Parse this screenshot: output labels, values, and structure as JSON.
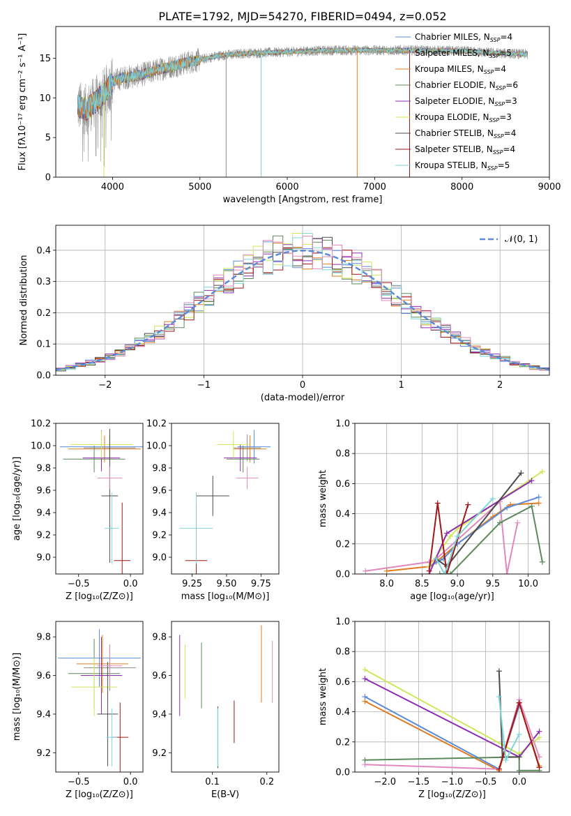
{
  "title": "PLATE=1792, MJD=54270, FIBERID=0494, z=0.052",
  "colors": {
    "chabrier_miles": "#5b8bd9",
    "salpeter_miles": "#8e8e8e",
    "kroupa_miles": "#e07b22",
    "chabrier_elodie": "#5a8a5a",
    "salpeter_elodie": "#8e2bb3",
    "kroupa_elodie": "#cde85a",
    "chabrier_stelib": "#4a4a4a",
    "salpeter_stelib": "#a01717",
    "kroupa_stelib": "#7fd6d9",
    "pink": "#e088bd",
    "gauss": "#5b8bd9"
  },
  "chart_data": [
    {
      "id": "spectrum",
      "type": "line",
      "xlabel": "wavelength [Angstrom, rest frame]",
      "ylabel": "Flux [fλ10⁻¹⁷ erg cm⁻² s⁻¹ A⁻¹]",
      "xlim": [
        3350,
        9000
      ],
      "ylim": [
        0,
        19
      ],
      "xticks": [
        "4000",
        "5000",
        "6000",
        "7000",
        "8000",
        "9000"
      ],
      "yticks": [
        "0",
        "5",
        "10",
        "15"
      ],
      "grid": false,
      "legend_position": "right",
      "legend": [
        {
          "label": "Chabrier MILES, N",
          "sub": "SSP",
          "eq": "=4",
          "color": "#5b8bd9"
        },
        {
          "label": "Salpeter MILES, N",
          "sub": "SSP",
          "eq": "=5",
          "color": "#8e8e8e"
        },
        {
          "label": "Kroupa MILES, N",
          "sub": "SSP",
          "eq": "=4",
          "color": "#e07b22"
        },
        {
          "label": "Chabrier ELODIE, N",
          "sub": "SSP",
          "eq": "=6",
          "color": "#5a8a5a"
        },
        {
          "label": "Salpeter ELODIE, N",
          "sub": "SSP",
          "eq": "=3",
          "color": "#8e2bb3"
        },
        {
          "label": "Kroupa ELODIE, N",
          "sub": "SSP",
          "eq": "=3",
          "color": "#cde85a"
        },
        {
          "label": "Chabrier STELIB, N",
          "sub": "SSP",
          "eq": "=4",
          "color": "#4a4a4a"
        },
        {
          "label": "Salpeter STELIB, N",
          "sub": "SSP",
          "eq": "=4",
          "color": "#a01717"
        },
        {
          "label": "Kroupa STELIB, N",
          "sub": "SSP",
          "eq": "=5",
          "color": "#7fd6d9"
        }
      ],
      "continuum": [
        [
          3600,
          9.0
        ],
        [
          3700,
          8.5
        ],
        [
          3800,
          9.5
        ],
        [
          3900,
          10.5
        ],
        [
          4000,
          12.0
        ],
        [
          4100,
          12.5
        ],
        [
          4300,
          12.8
        ],
        [
          4500,
          13.5
        ],
        [
          4800,
          14.3
        ],
        [
          5000,
          14.8
        ],
        [
          5200,
          15.3
        ],
        [
          5500,
          15.6
        ],
        [
          6000,
          15.8
        ],
        [
          6500,
          16.0
        ],
        [
          7000,
          16.0
        ],
        [
          7500,
          16.0
        ],
        [
          8000,
          15.9
        ],
        [
          8500,
          15.6
        ],
        [
          8750,
          15.5
        ]
      ],
      "spikes": [
        [
          3900,
          0
        ],
        [
          5300,
          0
        ],
        [
          5700,
          0
        ],
        [
          6800,
          0
        ],
        [
          7400,
          0
        ]
      ]
    },
    {
      "id": "residuals",
      "type": "bar",
      "xlabel": "(data-model)/error",
      "ylabel": "Normed distribution",
      "xlim": [
        -2.5,
        2.5
      ],
      "ylim": [
        0,
        0.48
      ],
      "xticks": [
        "−2",
        "−1",
        "0",
        "1",
        "2"
      ],
      "yticks": [
        "0.0",
        "0.1",
        "0.2",
        "0.3",
        "0.4"
      ],
      "grid": true,
      "legend_position": "upper right",
      "legend_label": "𝒩(0, 1)",
      "bin_edges_start": -2.5,
      "bin_width": 0.1
    },
    {
      "id": "age_vs_z",
      "type": "scatter",
      "xlabel": "Z [log₁₀(Z/Z⊙)]",
      "ylabel": "age  [log₁₀(age/yr)]",
      "xlim": [
        -0.72,
        0.12
      ],
      "ylim": [
        8.85,
        10.2
      ],
      "xticks": [
        "−0.5",
        "0.0"
      ],
      "yticks": [
        "9.0",
        "9.2",
        "9.4",
        "9.6",
        "9.8",
        "10.0",
        "10.2"
      ],
      "points": [
        {
          "x": -0.28,
          "y": 9.99,
          "xerr": 0.4,
          "yerr": 0.15,
          "color": "#5b8bd9"
        },
        {
          "x": -0.2,
          "y": 9.98,
          "xerr": 0.25,
          "yerr": 0.12,
          "color": "#8e8e8e"
        },
        {
          "x": -0.25,
          "y": 9.97,
          "xerr": 0.35,
          "yerr": 0.12,
          "color": "#e07b22"
        },
        {
          "x": -0.35,
          "y": 9.88,
          "xerr": 0.3,
          "yerr": 0.12,
          "color": "#5a8a5a"
        },
        {
          "x": -0.28,
          "y": 9.89,
          "xerr": 0.18,
          "yerr": 0.12,
          "color": "#8e2bb3"
        },
        {
          "x": -0.28,
          "y": 10.01,
          "xerr": 0.3,
          "yerr": 0.12,
          "color": "#cde85a"
        },
        {
          "x": -0.2,
          "y": 9.55,
          "xerr": 0.08,
          "yerr": 0.6,
          "color": "#4a4a4a"
        },
        {
          "x": -0.08,
          "y": 8.97,
          "xerr": 0.08,
          "yerr": 0.52,
          "color": "#a01717"
        },
        {
          "x": -0.18,
          "y": 9.26,
          "xerr": 0.07,
          "yerr": 0.32,
          "color": "#7fd6d9"
        },
        {
          "x": -0.2,
          "y": 9.71,
          "xerr": 0.12,
          "yerr": 0.1,
          "color": "#e088bd"
        }
      ]
    },
    {
      "id": "age_vs_mass",
      "type": "scatter",
      "xlabel": "mass [log₁₀(M/M⊙)]",
      "ylabel": "",
      "xlim": [
        9.1,
        9.88
      ],
      "ylim": [
        8.85,
        10.2
      ],
      "xticks": [
        "9.25",
        "9.50",
        "9.75"
      ],
      "yticks": [
        "9.0",
        "9.2",
        "9.4",
        "9.6",
        "9.8",
        "10.0",
        "10.2"
      ],
      "points": [
        {
          "x": 9.7,
          "y": 9.99,
          "xerr": 0.12,
          "yerr": 0.15,
          "color": "#5b8bd9"
        },
        {
          "x": 9.65,
          "y": 9.98,
          "xerr": 0.1,
          "yerr": 0.12,
          "color": "#8e8e8e"
        },
        {
          "x": 9.67,
          "y": 9.97,
          "xerr": 0.12,
          "yerr": 0.12,
          "color": "#e07b22"
        },
        {
          "x": 9.62,
          "y": 9.88,
          "xerr": 0.12,
          "yerr": 0.12,
          "color": "#5a8a5a"
        },
        {
          "x": 9.6,
          "y": 9.89,
          "xerr": 0.12,
          "yerr": 0.12,
          "color": "#8e2bb3"
        },
        {
          "x": 9.55,
          "y": 10.01,
          "xerr": 0.12,
          "yerr": 0.12,
          "color": "#cde85a"
        },
        {
          "x": 9.4,
          "y": 9.55,
          "xerr": 0.12,
          "yerr": 0.18,
          "color": "#4a4a4a"
        },
        {
          "x": 9.28,
          "y": 8.97,
          "xerr": 0.08,
          "yerr": 0.5,
          "color": "#a01717"
        },
        {
          "x": 9.28,
          "y": 9.26,
          "xerr": 0.12,
          "yerr": 0.32,
          "color": "#7fd6d9"
        },
        {
          "x": 9.65,
          "y": 9.71,
          "xerr": 0.08,
          "yerr": 0.1,
          "color": "#e088bd"
        }
      ]
    },
    {
      "id": "weight_vs_age",
      "type": "line",
      "xlabel": "age  [log₁₀(age/yr)]",
      "ylabel": "mass weight",
      "xlim": [
        7.55,
        10.3
      ],
      "ylim": [
        0,
        1.0
      ],
      "xticks": [
        "8.0",
        "8.5",
        "9.0",
        "9.5",
        "10.0"
      ],
      "yticks": [
        "0.0",
        "0.2",
        "0.4",
        "0.6",
        "0.8",
        "1.0"
      ],
      "grid": true,
      "series": [
        {
          "color": "#e088bd",
          "x": [
            7.7,
            8.6,
            8.7,
            9.6,
            9.7,
            9.85
          ],
          "y": [
            0.02,
            0.08,
            0.1,
            0.48,
            0.0,
            0.34
          ]
        },
        {
          "color": "#e07b22",
          "x": [
            8.0,
            8.6,
            8.7,
            9.0,
            9.5,
            9.75,
            10.15
          ],
          "y": [
            0.02,
            0.05,
            0.08,
            0.2,
            0.38,
            0.46,
            0.47
          ]
        },
        {
          "color": "#5b8bd9",
          "x": [
            8.6,
            8.8,
            9.0,
            9.7,
            10.15
          ],
          "y": [
            0.05,
            0.1,
            0.2,
            0.44,
            0.51
          ]
        },
        {
          "color": "#cde85a",
          "x": [
            8.6,
            8.9,
            9.0,
            10.2
          ],
          "y": [
            0.05,
            0.25,
            0.3,
            0.68
          ]
        },
        {
          "color": "#8e2bb3",
          "x": [
            8.6,
            8.85,
            10.05
          ],
          "y": [
            0.0,
            0.27,
            0.62
          ]
        },
        {
          "color": "#4a4a4a",
          "x": [
            8.7,
            8.85,
            9.9
          ],
          "y": [
            0.1,
            0.05,
            0.67
          ]
        },
        {
          "color": "#a01717",
          "x": [
            8.6,
            8.72,
            8.85,
            9.15
          ],
          "y": [
            0.02,
            0.47,
            0.0,
            0.46
          ]
        },
        {
          "color": "#5a8a5a",
          "x": [
            8.75,
            8.9,
            9.6,
            10.05,
            10.2
          ],
          "y": [
            0.0,
            0.0,
            0.34,
            0.45,
            0.08
          ]
        },
        {
          "color": "#7fd6d9",
          "x": [
            8.7,
            8.82,
            9.0,
            9.5
          ],
          "y": [
            0.1,
            0.0,
            0.25,
            0.5
          ]
        }
      ]
    },
    {
      "id": "mass_vs_z",
      "type": "scatter",
      "xlabel": "Z [log₁₀(Z/Z⊙)]",
      "ylabel": "mass [log₁₀(M/M⊙)]",
      "xlim": [
        -0.72,
        0.12
      ],
      "ylim": [
        9.1,
        9.88
      ],
      "xticks": [
        "−0.5",
        "0.0"
      ],
      "yticks": [
        "9.2",
        "9.4",
        "9.6",
        "9.8"
      ],
      "points": [
        {
          "x": -0.3,
          "y": 9.69,
          "xerr": 0.4,
          "yerr": 0.15,
          "color": "#5b8bd9"
        },
        {
          "x": -0.2,
          "y": 9.64,
          "xerr": 0.25,
          "yerr": 0.12,
          "color": "#8e8e8e"
        },
        {
          "x": -0.27,
          "y": 9.66,
          "xerr": 0.25,
          "yerr": 0.15,
          "color": "#e07b22"
        },
        {
          "x": -0.35,
          "y": 9.61,
          "xerr": 0.25,
          "yerr": 0.18,
          "color": "#5a8a5a"
        },
        {
          "x": -0.28,
          "y": 9.6,
          "xerr": 0.2,
          "yerr": 0.2,
          "color": "#8e2bb3"
        },
        {
          "x": -0.35,
          "y": 9.54,
          "xerr": 0.22,
          "yerr": 0.15,
          "color": "#cde85a"
        },
        {
          "x": -0.22,
          "y": 9.4,
          "xerr": 0.1,
          "yerr": 0.27,
          "color": "#4a4a4a"
        },
        {
          "x": -0.1,
          "y": 9.28,
          "xerr": 0.08,
          "yerr": 0.18,
          "color": "#a01717"
        },
        {
          "x": -0.18,
          "y": 9.28,
          "xerr": 0.05,
          "yerr": 0.15,
          "color": "#7fd6d9"
        },
        {
          "x": -0.2,
          "y": 9.65,
          "xerr": 0.12,
          "yerr": 0.1,
          "color": "#e088bd"
        }
      ]
    },
    {
      "id": "mass_vs_ebv",
      "type": "scatter",
      "xlabel": "E(B-V)",
      "ylabel": "",
      "xlim": [
        0.025,
        0.222
      ],
      "ylim": [
        9.1,
        9.88
      ],
      "xticks": [
        "0.1",
        "0.2"
      ],
      "yticks": [
        "9.2",
        "9.4",
        "9.6",
        "9.8"
      ],
      "points": [
        {
          "x": 0.19,
          "y": 9.69,
          "xerr": 0,
          "yerr": 0.15,
          "color": "#5b8bd9"
        },
        {
          "x": 0.19,
          "y": 9.66,
          "xerr": 0,
          "yerr": 0.2,
          "color": "#e07b22"
        },
        {
          "x": 0.08,
          "y": 9.6,
          "xerr": 0,
          "yerr": 0.17,
          "color": "#5a8a5a"
        },
        {
          "x": 0.04,
          "y": 9.6,
          "xerr": 0,
          "yerr": 0.21,
          "color": "#8e2bb3"
        },
        {
          "x": 0.05,
          "y": 9.62,
          "xerr": 0,
          "yerr": 0.14,
          "color": "#cde85a"
        },
        {
          "x": 0.11,
          "y": 9.28,
          "xerr": 0,
          "yerr": 0.16,
          "color": "#4a4a4a"
        },
        {
          "x": 0.14,
          "y": 9.36,
          "xerr": 0,
          "yerr": 0.11,
          "color": "#a01717"
        },
        {
          "x": 0.11,
          "y": 9.28,
          "xerr": 0,
          "yerr": 0.15,
          "color": "#7fd6d9"
        },
        {
          "x": 0.21,
          "y": 9.62,
          "xerr": 0,
          "yerr": 0.16,
          "color": "#e088bd"
        }
      ]
    },
    {
      "id": "weight_vs_z",
      "type": "line",
      "xlabel": "Z [log₁₀(Z/Z⊙)]",
      "ylabel": "mass weight",
      "xlim": [
        -2.45,
        0.45
      ],
      "ylim": [
        0,
        1.0
      ],
      "xticks": [
        "−2.0",
        "−1.5",
        "−1.0",
        "−0.5",
        "0.0"
      ],
      "yticks": [
        "0.0",
        "0.2",
        "0.4",
        "0.6",
        "0.8",
        "1.0"
      ],
      "grid": true,
      "series": [
        {
          "color": "#cde85a",
          "x": [
            -2.3,
            0.0,
            0.3
          ],
          "y": [
            0.68,
            0.12,
            0.23
          ]
        },
        {
          "color": "#8e2bb3",
          "x": [
            -2.3,
            0.0,
            0.3
          ],
          "y": [
            0.62,
            0.1,
            0.27
          ]
        },
        {
          "color": "#5b8bd9",
          "x": [
            -2.3,
            -0.3,
            0.0
          ],
          "y": [
            0.5,
            0.02,
            0.44
          ]
        },
        {
          "color": "#e07b22",
          "x": [
            -2.3,
            -0.3,
            0.0,
            0.3
          ],
          "y": [
            0.47,
            0.01,
            0.46,
            0.04
          ]
        },
        {
          "color": "#e088bd",
          "x": [
            -2.3,
            -0.3,
            0.0,
            0.3
          ],
          "y": [
            0.05,
            0.02,
            0.48,
            0.1
          ]
        },
        {
          "color": "#5a8a5a",
          "x": [
            -2.3,
            0.0,
            0.0,
            0.3
          ],
          "y": [
            0.08,
            0.1,
            0.01,
            0.01
          ]
        },
        {
          "color": "#4a4a4a",
          "x": [
            -0.3,
            -0.25,
            0.0
          ],
          "y": [
            0.67,
            0.1,
            0.1
          ]
        },
        {
          "color": "#a01717",
          "x": [
            -0.3,
            0.0,
            0.3
          ],
          "y": [
            0.02,
            0.46,
            0.03
          ]
        },
        {
          "color": "#7fd6d9",
          "x": [
            -0.3,
            -0.2,
            0.0
          ],
          "y": [
            0.5,
            0.08,
            0.25
          ]
        }
      ]
    }
  ]
}
